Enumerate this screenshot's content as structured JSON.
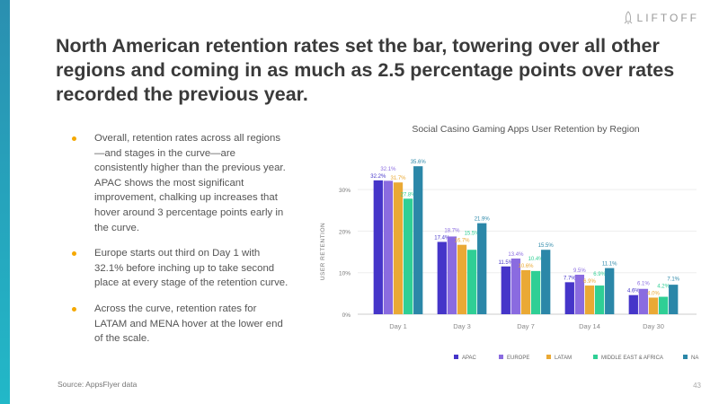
{
  "brand": {
    "name": "LIFTOFF",
    "icon": "rocket-icon"
  },
  "headline": "North American retention rates set the bar, towering over all other regions and coming in as much as 2.5 percentage points over rates recorded the previous year.",
  "bullets": [
    "Overall, retention rates across all regions—and stages in the curve—are consistently higher than the previous year. APAC shows the most significant improvement, chalking up increases that hover around 3 percentage points early in the curve.",
    "Europe starts out third on Day 1 with 32.1% before inching up to take second place at every stage of the retention curve.",
    "Across the curve, retention rates for LATAM and MENA hover at the lower end of the scale."
  ],
  "source": "Source: AppsFlyer data",
  "page_number": "43",
  "chart_data": {
    "type": "bar",
    "title": "Social Casino Gaming Apps User Retention by Region",
    "xlabel": "",
    "ylabel": "USER RETENTION",
    "ylim": [
      0,
      37
    ],
    "yticks": [
      0,
      10,
      20,
      30
    ],
    "ytick_labels": [
      "0%",
      "10%",
      "20%",
      "30%"
    ],
    "grid": true,
    "legend_position": "bottom",
    "categories": [
      "Day 1",
      "Day 3",
      "Day 7",
      "Day 14",
      "Day 30"
    ],
    "series": [
      {
        "name": "APAC",
        "color": "#4535c9",
        "values": [
          32.2,
          17.4,
          11.5,
          7.7,
          4.6
        ]
      },
      {
        "name": "EUROPE",
        "color": "#8a6be0",
        "values": [
          32.1,
          18.7,
          13.4,
          9.5,
          6.1
        ]
      },
      {
        "name": "LATAM",
        "color": "#eaa935",
        "values": [
          31.7,
          16.7,
          10.6,
          6.9,
          4.0
        ]
      },
      {
        "name": "MIDDLE EAST & AFRICA",
        "color": "#2fcf95",
        "values": [
          27.8,
          15.5,
          10.4,
          6.9,
          4.2
        ]
      },
      {
        "name": "NA",
        "color": "#2b87a8",
        "values": [
          35.6,
          21.9,
          15.5,
          11.1,
          7.1
        ]
      }
    ]
  }
}
